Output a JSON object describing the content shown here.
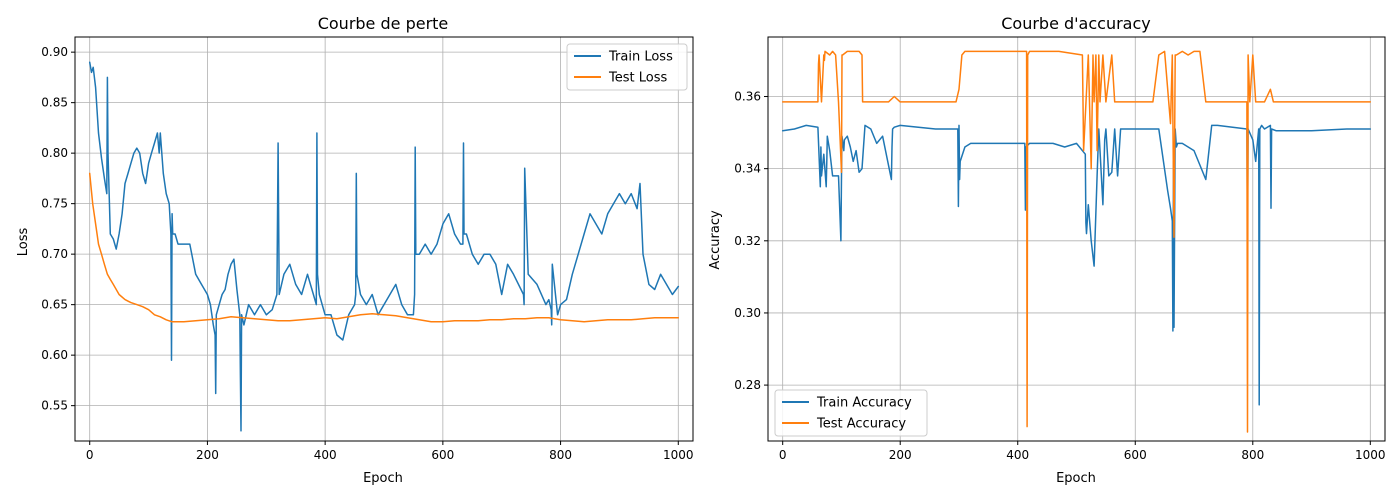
{
  "chart_data": [
    {
      "type": "line",
      "title": "Courbe de perte",
      "xlabel": "Epoch",
      "ylabel": "Loss",
      "xlim": [
        -25,
        1025
      ],
      "ylim": [
        0.515,
        0.915
      ],
      "xticks": [
        0,
        200,
        400,
        600,
        800,
        1000
      ],
      "yticks": [
        0.55,
        0.6,
        0.65,
        0.7,
        0.75,
        0.8,
        0.85,
        0.9
      ],
      "tick_decimals": 2,
      "grid": true,
      "legend_loc": "upper right",
      "series": [
        {
          "name": "Train Loss",
          "color": "#1f77b4",
          "x": [
            0,
            3,
            6,
            10,
            15,
            20,
            25,
            29,
            30,
            31,
            35,
            40,
            45,
            50,
            55,
            60,
            65,
            70,
            75,
            80,
            85,
            90,
            95,
            100,
            105,
            110,
            115,
            118,
            120,
            125,
            130,
            135,
            138,
            139,
            140,
            141,
            145,
            150,
            160,
            170,
            180,
            190,
            200,
            205,
            210,
            213,
            214,
            215,
            220,
            225,
            230,
            235,
            240,
            245,
            250,
            255,
            256,
            257,
            258,
            262,
            270,
            280,
            290,
            300,
            310,
            318,
            320,
            322,
            330,
            340,
            350,
            360,
            370,
            380,
            385,
            386,
            387,
            390,
            400,
            410,
            420,
            430,
            440,
            450,
            452,
            453,
            454,
            460,
            470,
            480,
            490,
            500,
            510,
            520,
            530,
            540,
            550,
            552,
            553,
            554,
            560,
            570,
            580,
            590,
            600,
            610,
            620,
            630,
            634,
            635,
            636,
            640,
            650,
            660,
            670,
            680,
            690,
            700,
            710,
            720,
            737,
            738,
            739,
            745,
            760,
            775,
            780,
            784,
            785,
            786,
            795,
            800,
            810,
            820,
            830,
            840,
            850,
            860,
            870,
            880,
            890,
            900,
            910,
            920,
            930,
            935,
            940,
            950,
            960,
            970,
            980,
            990,
            1000
          ],
          "y": [
            0.89,
            0.88,
            0.885,
            0.865,
            0.82,
            0.795,
            0.775,
            0.76,
            0.875,
            0.8,
            0.72,
            0.715,
            0.705,
            0.72,
            0.74,
            0.77,
            0.78,
            0.79,
            0.8,
            0.805,
            0.8,
            0.78,
            0.77,
            0.79,
            0.8,
            0.81,
            0.82,
            0.8,
            0.82,
            0.78,
            0.76,
            0.75,
            0.72,
            0.595,
            0.74,
            0.72,
            0.72,
            0.71,
            0.71,
            0.71,
            0.68,
            0.67,
            0.66,
            0.65,
            0.63,
            0.62,
            0.562,
            0.64,
            0.65,
            0.66,
            0.665,
            0.68,
            0.69,
            0.695,
            0.665,
            0.64,
            0.58,
            0.525,
            0.64,
            0.63,
            0.65,
            0.64,
            0.65,
            0.64,
            0.645,
            0.66,
            0.81,
            0.66,
            0.68,
            0.69,
            0.67,
            0.66,
            0.68,
            0.66,
            0.65,
            0.82,
            0.68,
            0.66,
            0.64,
            0.64,
            0.62,
            0.615,
            0.64,
            0.65,
            0.66,
            0.78,
            0.68,
            0.66,
            0.65,
            0.66,
            0.64,
            0.65,
            0.66,
            0.67,
            0.65,
            0.64,
            0.64,
            0.66,
            0.806,
            0.7,
            0.7,
            0.71,
            0.7,
            0.71,
            0.73,
            0.74,
            0.72,
            0.71,
            0.71,
            0.81,
            0.72,
            0.72,
            0.7,
            0.69,
            0.7,
            0.7,
            0.69,
            0.66,
            0.69,
            0.68,
            0.66,
            0.65,
            0.785,
            0.68,
            0.67,
            0.65,
            0.655,
            0.645,
            0.63,
            0.69,
            0.64,
            0.65,
            0.655,
            0.68,
            0.7,
            0.72,
            0.74,
            0.73,
            0.72,
            0.74,
            0.75,
            0.76,
            0.75,
            0.76,
            0.745,
            0.77,
            0.7,
            0.67,
            0.665,
            0.68,
            0.67,
            0.66,
            0.668
          ]
        },
        {
          "name": "Test Loss",
          "color": "#ff7f0e",
          "x": [
            0,
            5,
            10,
            15,
            20,
            25,
            30,
            35,
            40,
            50,
            60,
            70,
            80,
            90,
            100,
            110,
            120,
            130,
            140,
            160,
            180,
            200,
            220,
            240,
            260,
            280,
            300,
            320,
            340,
            360,
            380,
            400,
            420,
            440,
            460,
            480,
            500,
            520,
            540,
            560,
            580,
            600,
            620,
            640,
            660,
            680,
            700,
            720,
            740,
            760,
            780,
            800,
            820,
            840,
            860,
            880,
            900,
            920,
            940,
            960,
            980,
            1000
          ],
          "y": [
            0.78,
            0.75,
            0.73,
            0.71,
            0.7,
            0.69,
            0.68,
            0.675,
            0.67,
            0.66,
            0.655,
            0.652,
            0.65,
            0.648,
            0.645,
            0.64,
            0.638,
            0.635,
            0.633,
            0.633,
            0.634,
            0.635,
            0.636,
            0.638,
            0.637,
            0.636,
            0.635,
            0.634,
            0.634,
            0.635,
            0.636,
            0.637,
            0.636,
            0.638,
            0.64,
            0.641,
            0.64,
            0.639,
            0.637,
            0.635,
            0.633,
            0.633,
            0.634,
            0.634,
            0.634,
            0.635,
            0.635,
            0.636,
            0.636,
            0.637,
            0.637,
            0.635,
            0.634,
            0.633,
            0.634,
            0.635,
            0.635,
            0.635,
            0.636,
            0.637,
            0.637,
            0.637
          ]
        }
      ]
    },
    {
      "type": "line",
      "title": "Courbe d'accuracy",
      "xlabel": "Epoch",
      "ylabel": "Accuracy",
      "xlim": [
        -25,
        1025
      ],
      "ylim": [
        0.2645,
        0.3765
      ],
      "xticks": [
        0,
        200,
        400,
        600,
        800,
        1000
      ],
      "yticks": [
        0.28,
        0.3,
        0.32,
        0.34,
        0.36
      ],
      "tick_decimals": 2,
      "grid": true,
      "legend_loc": "lower left",
      "series": [
        {
          "name": "Train Accuracy",
          "color": "#1f77b4",
          "x": [
            0,
            20,
            40,
            60,
            64,
            65,
            66,
            70,
            74,
            75,
            76,
            80,
            85,
            95,
            99,
            100,
            101,
            104,
            105,
            110,
            115,
            120,
            125,
            130,
            135,
            140,
            150,
            160,
            170,
            185,
            186,
            187,
            190,
            200,
            260,
            298,
            299,
            300,
            301,
            302,
            310,
            320,
            400,
            412,
            413,
            414,
            420,
            460,
            480,
            500,
            515,
            516,
            517,
            520,
            525,
            530,
            535,
            538,
            540,
            545,
            548,
            550,
            555,
            560,
            565,
            570,
            575,
            580,
            600,
            640,
            655,
            660,
            663,
            664,
            665,
            666,
            667,
            668,
            670,
            672,
            680,
            700,
            720,
            730,
            740,
            790,
            791,
            792,
            800,
            805,
            810,
            811,
            812,
            815,
            820,
            830,
            831,
            832,
            840,
            900,
            960,
            1000
          ],
          "y": [
            0.3505,
            0.351,
            0.352,
            0.3515,
            0.335,
            0.346,
            0.338,
            0.344,
            0.335,
            0.342,
            0.349,
            0.345,
            0.338,
            0.338,
            0.32,
            0.338,
            0.349,
            0.345,
            0.348,
            0.349,
            0.346,
            0.342,
            0.345,
            0.339,
            0.34,
            0.352,
            0.351,
            0.347,
            0.349,
            0.337,
            0.346,
            0.351,
            0.3515,
            0.352,
            0.351,
            0.351,
            0.3295,
            0.352,
            0.337,
            0.342,
            0.346,
            0.347,
            0.347,
            0.347,
            0.3285,
            0.346,
            0.347,
            0.347,
            0.346,
            0.347,
            0.344,
            0.325,
            0.322,
            0.33,
            0.32,
            0.313,
            0.338,
            0.351,
            0.345,
            0.33,
            0.348,
            0.351,
            0.338,
            0.339,
            0.351,
            0.338,
            0.351,
            0.351,
            0.351,
            0.351,
            0.334,
            0.329,
            0.3255,
            0.295,
            0.342,
            0.296,
            0.324,
            0.351,
            0.346,
            0.347,
            0.347,
            0.345,
            0.337,
            0.352,
            0.352,
            0.351,
            0.322,
            0.351,
            0.348,
            0.342,
            0.351,
            0.2745,
            0.351,
            0.352,
            0.351,
            0.352,
            0.329,
            0.351,
            0.3505,
            0.3505,
            0.351,
            0.351
          ]
        },
        {
          "name": "Test Accuracy",
          "color": "#ff7f0e",
          "x": [
            0,
            30,
            55,
            60,
            61,
            62,
            66,
            70,
            71,
            72,
            80,
            85,
            90,
            95,
            100,
            101,
            102,
            110,
            130,
            135,
            136,
            137,
            140,
            180,
            190,
            200,
            210,
            240,
            295,
            300,
            305,
            310,
            320,
            415,
            416,
            417,
            420,
            470,
            510,
            511,
            512,
            520,
            525,
            528,
            530,
            533,
            535,
            538,
            540,
            545,
            550,
            560,
            565,
            570,
            580,
            630,
            640,
            650,
            660,
            663,
            666,
            668,
            670,
            680,
            690,
            700,
            710,
            720,
            740,
            790,
            791,
            792,
            795,
            800,
            805,
            810,
            811,
            812,
            820,
            830,
            835,
            840,
            900,
            1000
          ],
          "y": [
            0.3585,
            0.3585,
            0.3585,
            0.3585,
            0.369,
            0.3715,
            0.3585,
            0.3715,
            0.37,
            0.3725,
            0.3715,
            0.3725,
            0.3715,
            0.3585,
            0.339,
            0.3715,
            0.3715,
            0.3725,
            0.3725,
            0.3715,
            0.3585,
            0.3585,
            0.3585,
            0.3585,
            0.36,
            0.3585,
            0.3585,
            0.3585,
            0.3585,
            0.362,
            0.3715,
            0.3725,
            0.3725,
            0.3725,
            0.2685,
            0.3715,
            0.3725,
            0.3725,
            0.3715,
            0.3585,
            0.345,
            0.3715,
            0.34,
            0.3715,
            0.3585,
            0.3715,
            0.345,
            0.3715,
            0.3585,
            0.3715,
            0.3585,
            0.3715,
            0.3585,
            0.3585,
            0.3585,
            0.3585,
            0.3715,
            0.3725,
            0.3525,
            0.3715,
            0.321,
            0.3715,
            0.3715,
            0.3725,
            0.3715,
            0.3725,
            0.3725,
            0.3585,
            0.3585,
            0.3585,
            0.267,
            0.3715,
            0.3585,
            0.3715,
            0.3585,
            0.3585,
            0.3585,
            0.3585,
            0.3585,
            0.362,
            0.3585,
            0.3585,
            0.3585,
            0.3585
          ]
        }
      ]
    }
  ]
}
